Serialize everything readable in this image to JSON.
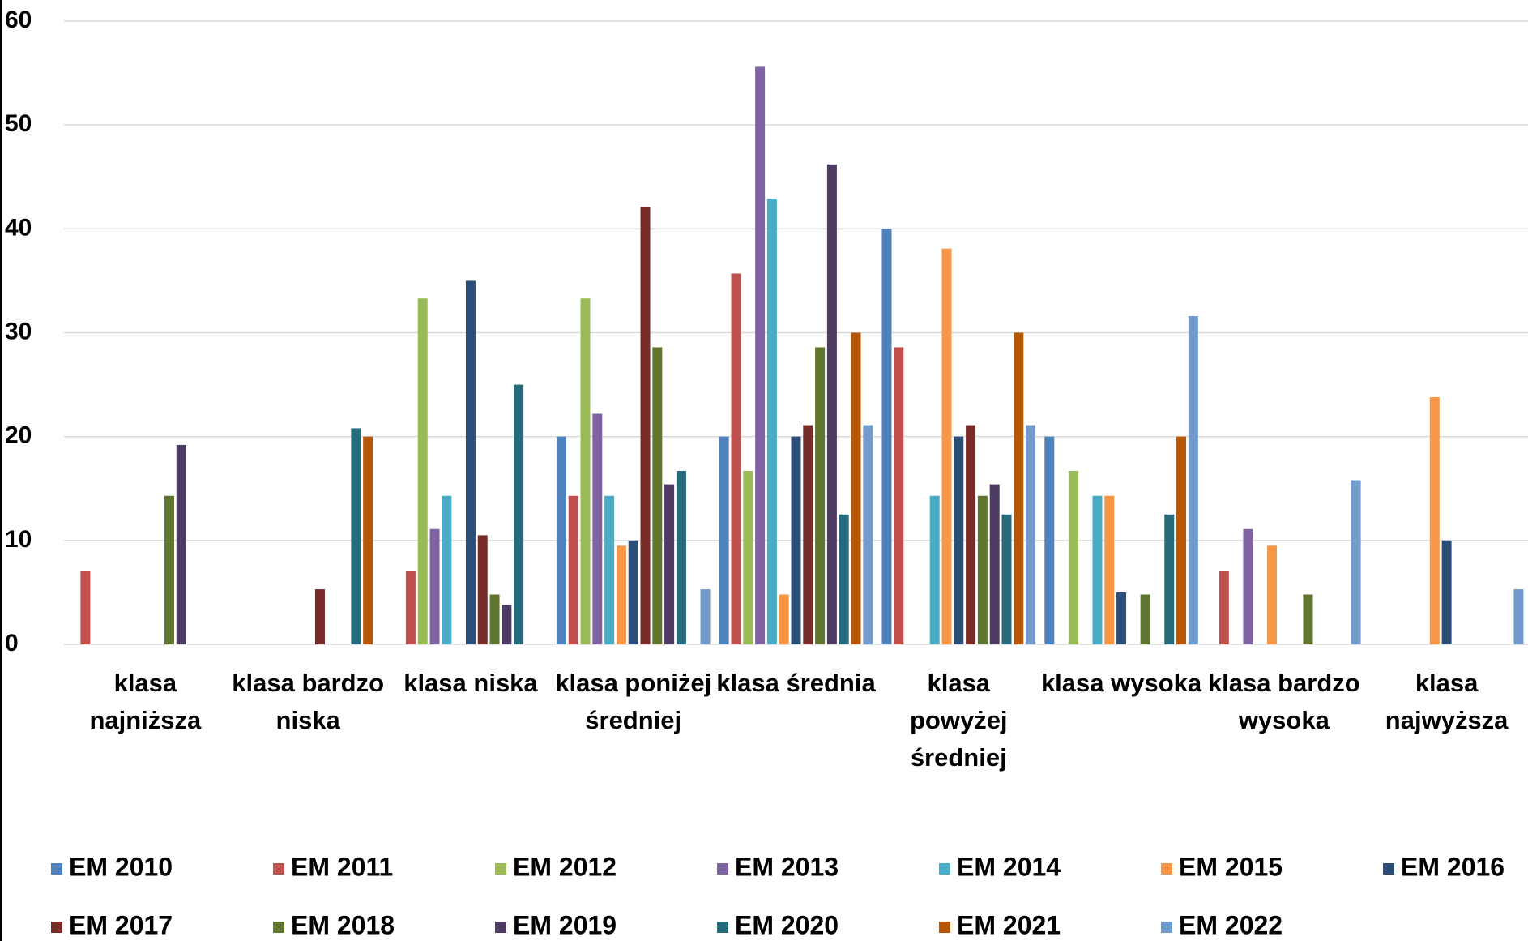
{
  "chart_data": {
    "type": "bar",
    "categories": [
      "klasa najniższa",
      "klasa bardzo niska",
      "klasa niska",
      "klasa poniżej średniej",
      "klasa średnia",
      "klasa powyżej średniej",
      "klasa wysoka",
      "klasa bardzo wysoka",
      "klasa najwyższa"
    ],
    "series": [
      {
        "name": "EM 2010",
        "color": "#4f81bd",
        "values": [
          0,
          0,
          0,
          20,
          20,
          40,
          20,
          0,
          0
        ]
      },
      {
        "name": "EM 2011",
        "color": "#c0504d",
        "values": [
          7.1,
          0,
          7.1,
          14.3,
          35.7,
          28.6,
          0,
          7.1,
          0
        ]
      },
      {
        "name": "EM 2012",
        "color": "#9bbb59",
        "values": [
          0,
          0,
          33.3,
          33.3,
          16.7,
          0,
          16.7,
          0,
          0
        ]
      },
      {
        "name": "EM 2013",
        "color": "#8064a2",
        "values": [
          0,
          0,
          11.1,
          22.2,
          55.6,
          0,
          0,
          11.1,
          0
        ]
      },
      {
        "name": "EM 2014",
        "color": "#4bacc6",
        "values": [
          0,
          0,
          14.3,
          14.3,
          42.9,
          14.3,
          14.3,
          0,
          0
        ]
      },
      {
        "name": "EM 2015",
        "color": "#f79646",
        "values": [
          0,
          0,
          0,
          9.5,
          4.8,
          38.1,
          14.3,
          9.5,
          23.8
        ]
      },
      {
        "name": "EM 2016",
        "color": "#2c4d75",
        "values": [
          0,
          0,
          35,
          10,
          20,
          20,
          5,
          0,
          10
        ]
      },
      {
        "name": "EM 2017",
        "color": "#772c2a",
        "values": [
          0,
          5.3,
          10.5,
          42.1,
          21.1,
          21.1,
          0,
          0,
          0
        ]
      },
      {
        "name": "EM 2018",
        "color": "#5f7530",
        "values": [
          14.3,
          0,
          4.8,
          28.6,
          28.6,
          14.3,
          4.8,
          4.8,
          0
        ]
      },
      {
        "name": "EM 2019",
        "color": "#4d3b62",
        "values": [
          19.2,
          0,
          3.8,
          15.4,
          46.2,
          15.4,
          0,
          0,
          0
        ]
      },
      {
        "name": "EM 2020",
        "color": "#276a7c",
        "values": [
          0,
          20.8,
          25,
          16.7,
          12.5,
          12.5,
          12.5,
          0,
          0
        ]
      },
      {
        "name": "EM 2021",
        "color": "#b65708",
        "values": [
          0,
          20,
          0,
          0,
          30,
          30,
          20,
          0,
          0
        ]
      },
      {
        "name": "EM 2022",
        "color": "#729aca",
        "values": [
          0,
          0,
          0,
          5.3,
          21.1,
          21.1,
          31.6,
          15.8,
          5.3
        ]
      }
    ],
    "ylim": [
      0,
      60
    ],
    "yticks": [
      0,
      10,
      20,
      30,
      40,
      50,
      60
    ],
    "grid": true,
    "legend": "bottom"
  }
}
